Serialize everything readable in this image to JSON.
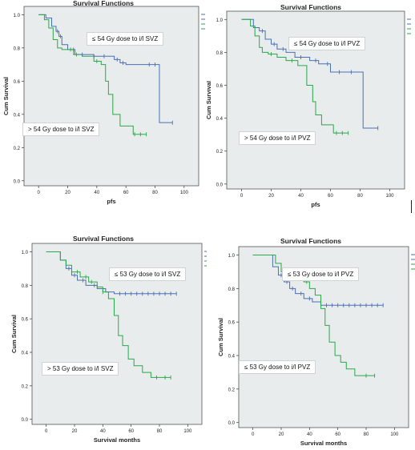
{
  "colors": {
    "plot_bg": "#e8ecec",
    "blue": "#4a6fb5",
    "green": "#2aa84a",
    "axis": "#333333"
  },
  "chart_data": [
    {
      "type": "line",
      "title": "Survival Functions",
      "xlabel": "pfs",
      "ylabel": "Cum Survival",
      "xlim": [
        -10,
        110
      ],
      "ylim": [
        -0.03,
        1.05
      ],
      "xticks": [
        "0",
        "20",
        "40",
        "60",
        "80",
        "100"
      ],
      "yticks": [
        "0.0",
        "0.2",
        "0.4",
        "0.6",
        "0.8",
        "1.0"
      ],
      "label_top": "≤ 54 Gy dose to i/l SVZ",
      "label_bottom": "> 54 Gy dose to i/l SVZ",
      "series": [
        {
          "color": "#4a6fb5",
          "x": [
            0,
            5,
            9,
            12,
            14,
            16,
            20,
            25,
            34,
            38,
            47,
            52,
            56,
            60,
            83,
            92
          ],
          "y": [
            1.0,
            0.98,
            0.93,
            0.9,
            0.87,
            0.82,
            0.79,
            0.76,
            0.76,
            0.75,
            0.75,
            0.73,
            0.71,
            0.7,
            0.35,
            0.35
          ]
        },
        {
          "color": "#2aa84a",
          "x": [
            0,
            4,
            7,
            10,
            13,
            16,
            20,
            24,
            30,
            38,
            43,
            46,
            48,
            51,
            56,
            65,
            74
          ],
          "y": [
            1.0,
            0.97,
            0.92,
            0.85,
            0.8,
            0.79,
            0.79,
            0.76,
            0.75,
            0.72,
            0.7,
            0.6,
            0.52,
            0.4,
            0.33,
            0.28,
            0.28
          ]
        }
      ],
      "censor_blue": [
        13,
        15,
        24,
        30,
        38,
        45,
        54,
        58,
        76,
        80,
        92
      ],
      "censor_green": [
        22,
        26,
        40,
        66,
        70,
        74
      ]
    },
    {
      "type": "line",
      "title": "Survival Functions",
      "xlabel": "pfs",
      "ylabel": "Cum Survival",
      "xlim": [
        -10,
        110
      ],
      "ylim": [
        -0.03,
        1.05
      ],
      "xticks": [
        "0",
        "20",
        "40",
        "60",
        "80",
        "100"
      ],
      "yticks": [
        "0.0",
        "0.2",
        "0.4",
        "0.6",
        "0.8",
        "1.0"
      ],
      "label_top": "≤ 54 Gy dose to i/l PVZ",
      "label_bottom": "> 54 Gy dose to i/l PVZ",
      "series": [
        {
          "color": "#4a6fb5",
          "x": [
            0,
            8,
            12,
            16,
            20,
            24,
            30,
            36,
            46,
            52,
            60,
            82,
            92
          ],
          "y": [
            1.0,
            0.95,
            0.93,
            0.88,
            0.85,
            0.82,
            0.8,
            0.77,
            0.75,
            0.73,
            0.68,
            0.34,
            0.34
          ]
        },
        {
          "color": "#2aa84a",
          "x": [
            0,
            6,
            9,
            12,
            14,
            18,
            24,
            30,
            38,
            44,
            48,
            50,
            54,
            62,
            72
          ],
          "y": [
            1.0,
            0.96,
            0.9,
            0.83,
            0.8,
            0.79,
            0.77,
            0.75,
            0.72,
            0.6,
            0.5,
            0.42,
            0.36,
            0.31,
            0.31
          ]
        }
      ],
      "censor_blue": [
        14,
        22,
        28,
        40,
        50,
        58,
        66,
        74,
        92
      ],
      "censor_green": [
        20,
        34,
        64,
        68,
        72
      ]
    },
    {
      "type": "line",
      "title": "Survival Functions",
      "xlabel": "Survival months",
      "ylabel": "Cum Survival",
      "xlim": [
        -10,
        110
      ],
      "ylim": [
        -0.03,
        1.05
      ],
      "xticks": [
        "0",
        "20",
        "40",
        "60",
        "80",
        "100"
      ],
      "yticks": [
        "0.0",
        "0.2",
        "0.4",
        "0.6",
        "0.8",
        "1.0"
      ],
      "label_top": "≤ 53 Gy dose to i/l SVZ",
      "label_bottom": "> 53 Gy dose to i/l SVZ",
      "series": [
        {
          "color": "#4a6fb5",
          "x": [
            0,
            10,
            14,
            18,
            22,
            28,
            36,
            42,
            48,
            92
          ],
          "y": [
            1.0,
            0.95,
            0.9,
            0.86,
            0.83,
            0.8,
            0.78,
            0.76,
            0.75,
            0.75
          ]
        },
        {
          "color": "#2aa84a",
          "x": [
            0,
            10,
            14,
            18,
            24,
            30,
            36,
            40,
            44,
            48,
            51,
            54,
            58,
            62,
            68,
            74,
            88
          ],
          "y": [
            1.0,
            0.95,
            0.92,
            0.88,
            0.85,
            0.82,
            0.79,
            0.76,
            0.72,
            0.62,
            0.5,
            0.44,
            0.36,
            0.32,
            0.28,
            0.25,
            0.25
          ]
        }
      ],
      "censor_blue": [
        16,
        20,
        26,
        34,
        52,
        56,
        60,
        64,
        68,
        72,
        76,
        80,
        84,
        88,
        92
      ],
      "censor_green": [
        22,
        28,
        32,
        40,
        78,
        84,
        88
      ]
    },
    {
      "type": "line",
      "title": "Survival Functions",
      "xlabel": "Survival months",
      "ylabel": "Cum Survival",
      "xlim": [
        -10,
        110
      ],
      "ylim": [
        -0.03,
        1.05
      ],
      "xticks": [
        "0",
        "20",
        "40",
        "60",
        "80",
        "100"
      ],
      "yticks": [
        "0.0",
        "0.2",
        "0.4",
        "0.6",
        "0.8",
        "1.0"
      ],
      "label_top": "≤ 53 Gy dose to i/l PVZ",
      "label_bottom": "≤ 53 Gy dose to i/l PVZ",
      "series": [
        {
          "color": "#4a6fb5",
          "x": [
            0,
            14,
            18,
            22,
            26,
            30,
            36,
            42,
            48,
            92
          ],
          "y": [
            1.0,
            0.93,
            0.88,
            0.84,
            0.8,
            0.77,
            0.74,
            0.72,
            0.7,
            0.7
          ]
        },
        {
          "color": "#2aa84a",
          "x": [
            0,
            16,
            20,
            24,
            30,
            36,
            40,
            44,
            48,
            51,
            54,
            58,
            62,
            66,
            72,
            86
          ],
          "y": [
            1.0,
            0.95,
            0.9,
            0.88,
            0.86,
            0.84,
            0.8,
            0.76,
            0.68,
            0.58,
            0.48,
            0.4,
            0.36,
            0.32,
            0.28,
            0.28
          ]
        }
      ],
      "censor_blue": [
        20,
        24,
        28,
        34,
        40,
        52,
        56,
        60,
        64,
        68,
        72,
        76,
        80,
        84,
        88,
        92
      ],
      "censor_green": [
        26,
        32,
        38,
        80,
        86
      ]
    }
  ]
}
